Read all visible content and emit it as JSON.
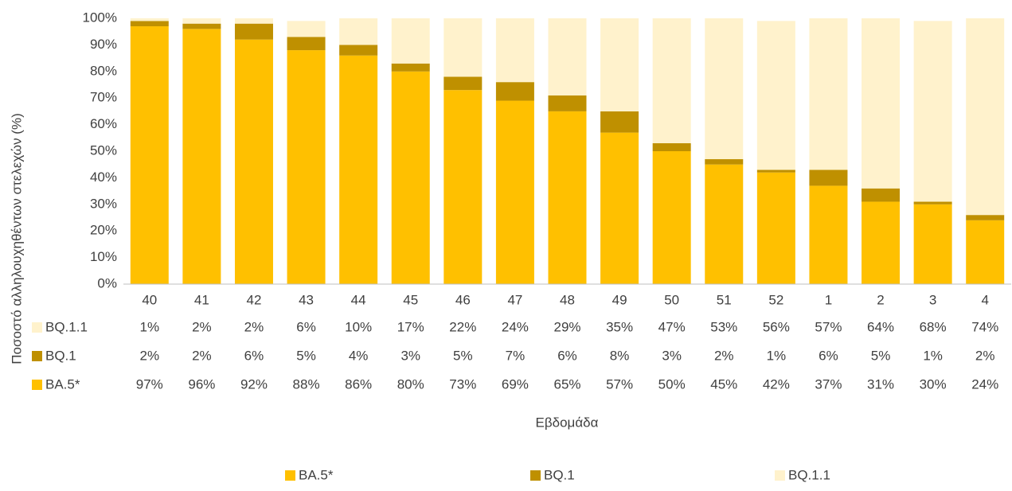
{
  "chart_data": {
    "type": "stacked_bar",
    "y_axis_title": "Ποσοστό αλληλουχηθέντων στελεχών (%)",
    "x_axis_title": "Εβδομάδα",
    "categories": [
      "40",
      "41",
      "42",
      "43",
      "44",
      "45",
      "46",
      "47",
      "48",
      "49",
      "50",
      "51",
      "52",
      "1",
      "2",
      "3",
      "4"
    ],
    "series": [
      {
        "name": "BA.5*",
        "color": "#ffc000",
        "values": [
          97,
          96,
          92,
          88,
          86,
          80,
          73,
          69,
          65,
          57,
          50,
          45,
          42,
          37,
          31,
          30,
          24
        ],
        "value_labels": [
          "97%",
          "96%",
          "92%",
          "88%",
          "86%",
          "80%",
          "73%",
          "69%",
          "65%",
          "57%",
          "50%",
          "45%",
          "42%",
          "37%",
          "31%",
          "30%",
          "24%"
        ]
      },
      {
        "name": "BQ.1",
        "color": "#bf9000",
        "values": [
          2,
          2,
          6,
          5,
          4,
          3,
          5,
          7,
          6,
          8,
          3,
          2,
          1,
          6,
          5,
          1,
          2
        ],
        "value_labels": [
          "2%",
          "2%",
          "6%",
          "5%",
          "4%",
          "3%",
          "5%",
          "7%",
          "6%",
          "8%",
          "3%",
          "2%",
          "1%",
          "6%",
          "5%",
          "1%",
          "2%"
        ]
      },
      {
        "name": "BQ.1.1",
        "color": "#fff2cc",
        "values": [
          1,
          2,
          2,
          6,
          10,
          17,
          22,
          24,
          29,
          35,
          47,
          53,
          56,
          57,
          64,
          68,
          74
        ],
        "value_labels": [
          "1%",
          "2%",
          "2%",
          "6%",
          "10%",
          "17%",
          "22%",
          "24%",
          "29%",
          "35%",
          "47%",
          "53%",
          "56%",
          "57%",
          "64%",
          "68%",
          "74%"
        ]
      }
    ],
    "ylim": [
      0,
      100
    ],
    "yticks": [
      {
        "value": 0,
        "label": "0%"
      },
      {
        "value": 10,
        "label": "10%"
      },
      {
        "value": 20,
        "label": "20%"
      },
      {
        "value": 30,
        "label": "30%"
      },
      {
        "value": 40,
        "label": "40%"
      },
      {
        "value": 50,
        "label": "50%"
      },
      {
        "value": 60,
        "label": "60%"
      },
      {
        "value": 70,
        "label": "70%"
      },
      {
        "value": 80,
        "label": "80%"
      },
      {
        "value": 90,
        "label": "90%"
      },
      {
        "value": 100,
        "label": "100%"
      }
    ],
    "grid": false
  }
}
